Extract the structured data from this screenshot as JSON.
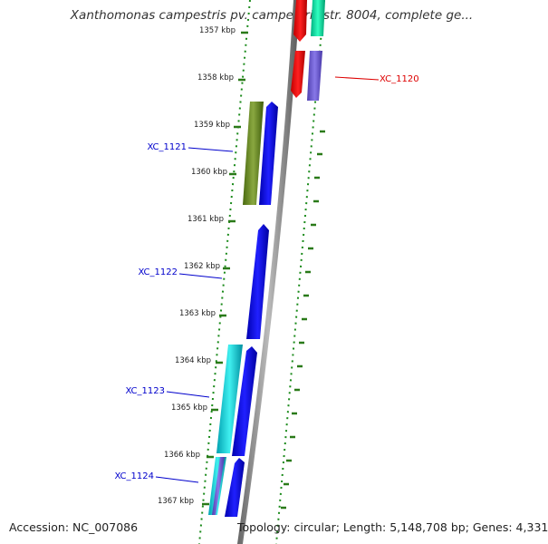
{
  "title": "Xanthomonas campestris pv. campestris str. 8004, complete ge...",
  "footer": {
    "accession": "Accession: NC_007086",
    "topology": "Topology: circular; Length: 5,148,708 bp; Genes: 4,331"
  },
  "ticks": [
    "1357 kbp",
    "1358 kbp",
    "1359 kbp",
    "1360 kbp",
    "1361 kbp",
    "1362 kbp",
    "1363 kbp",
    "1364 kbp",
    "1365 kbp",
    "1366 kbp",
    "1367 kbp"
  ],
  "gene_labels": [
    {
      "name": "XC_1120",
      "color": "#dd0000"
    },
    {
      "name": "XC_1121",
      "color": "#0000cc"
    },
    {
      "name": "XC_1122",
      "color": "#0000cc"
    },
    {
      "name": "XC_1123",
      "color": "#0000cc"
    },
    {
      "name": "XC_1124",
      "color": "#0000cc"
    }
  ],
  "colors": {
    "backbone": "#888888",
    "forward_gene": "#0000ee",
    "reverse_red": "#ff0000",
    "reverse_teal": "#00e8a8",
    "reverse_purple": "#7060d0",
    "olive_gene": "#6b8a24",
    "cyan_gene": "#00c8d0",
    "tick": "#2a7a18"
  }
}
